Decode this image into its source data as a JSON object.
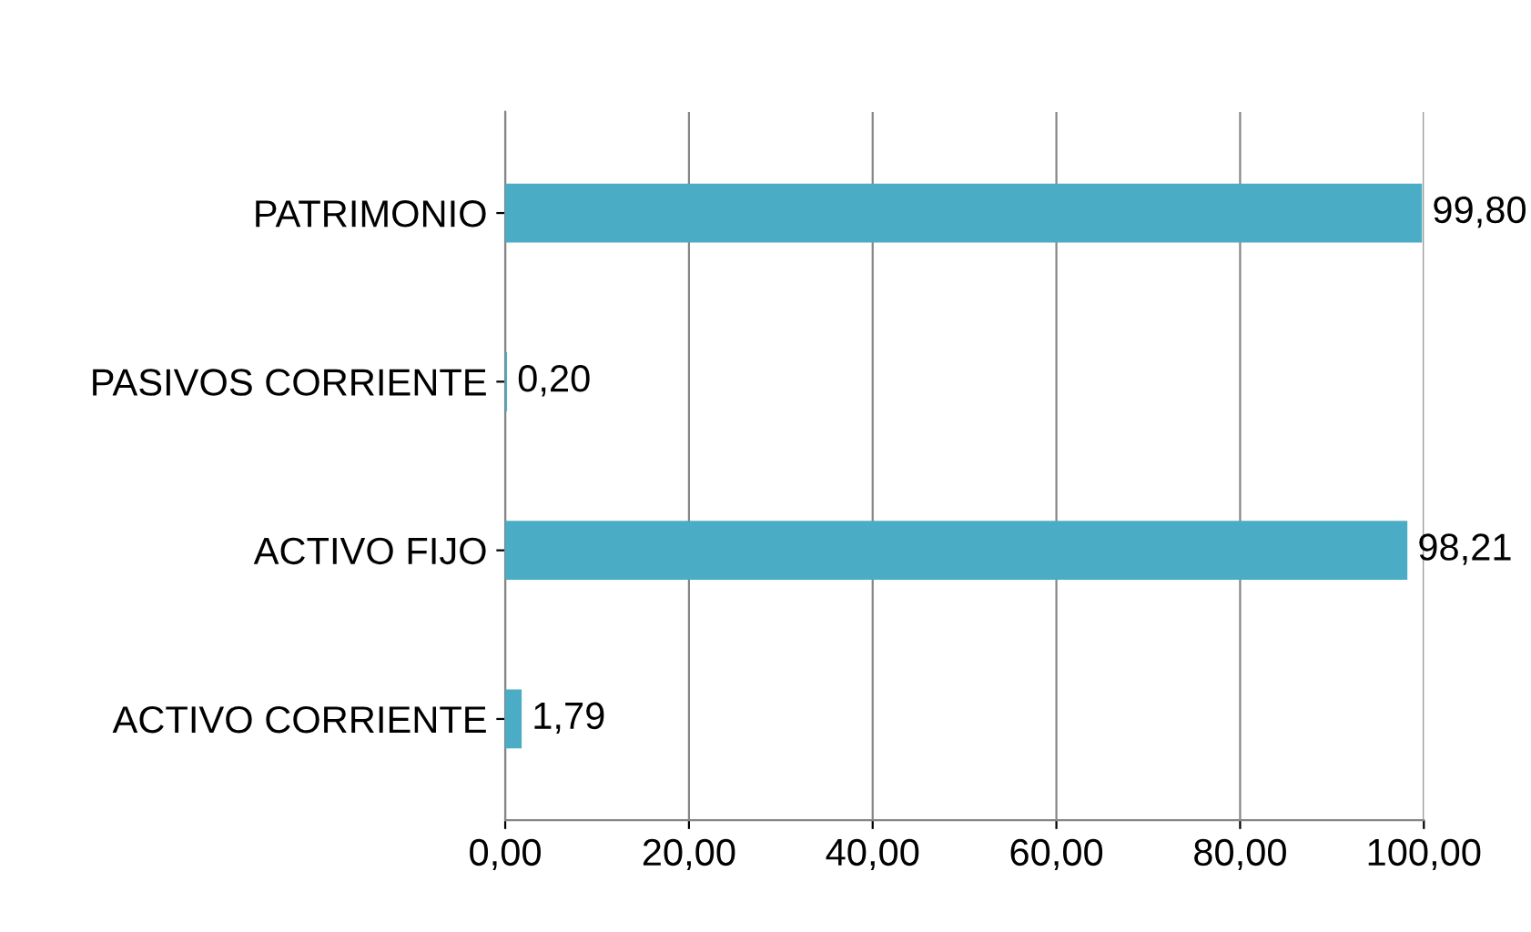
{
  "chart_data": {
    "type": "bar",
    "orientation": "horizontal",
    "categories": [
      "PATRIMONIO",
      "PASIVOS CORRIENTE",
      "ACTIVO FIJO",
      "ACTIVO CORRIENTE"
    ],
    "values": [
      99.8,
      0.2,
      98.21,
      1.79
    ],
    "value_labels": [
      "99,80",
      "0,20",
      "98,21",
      "1,79"
    ],
    "color": "#4bacc6",
    "xlim": [
      0,
      100
    ],
    "xticks": [
      {
        "value": 0,
        "label": "0,00"
      },
      {
        "value": 20,
        "label": "20,00"
      },
      {
        "value": 40,
        "label": "40,00"
      },
      {
        "value": 60,
        "label": "60,00"
      },
      {
        "value": 80,
        "label": "80,00"
      },
      {
        "value": 100,
        "label": "100,00"
      }
    ],
    "grid": "x"
  }
}
